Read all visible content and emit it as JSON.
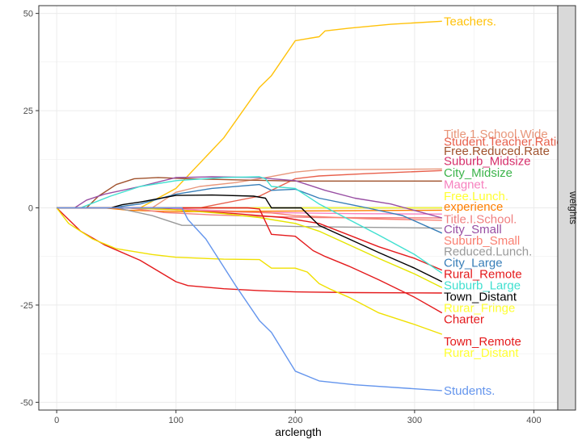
{
  "chart_data": {
    "type": "line",
    "xlabel": "arclength",
    "ylabel": "",
    "facet_label": "weights",
    "xlim": [
      -15,
      420
    ],
    "ylim": [
      -52,
      52
    ],
    "x_ticks": [
      0,
      100,
      200,
      300,
      400
    ],
    "y_ticks": [
      -50,
      -25,
      0,
      25,
      50
    ],
    "grid": true,
    "legend": "none",
    "series": [
      {
        "name": "Teachers.",
        "color": "#FFC20A",
        "points": [
          [
            0,
            0
          ],
          [
            70,
            0
          ],
          [
            100,
            5
          ],
          [
            140,
            18
          ],
          [
            170,
            31
          ],
          [
            180,
            34
          ],
          [
            200,
            43
          ],
          [
            210,
            43.5
          ],
          [
            220,
            44
          ],
          [
            225,
            45.5
          ],
          [
            245,
            46.2
          ],
          [
            280,
            47.2
          ],
          [
            323,
            48
          ]
        ]
      },
      {
        "name": "Title.1.School.Wide",
        "color": "#E8967A",
        "points": [
          [
            0,
            0
          ],
          [
            80,
            0
          ],
          [
            100,
            4
          ],
          [
            120,
            5.5
          ],
          [
            150,
            6.5
          ],
          [
            170,
            7.5
          ],
          [
            200,
            9.2
          ],
          [
            220,
            9.8
          ],
          [
            323,
            10
          ]
        ]
      },
      {
        "name": "Student.Teacher.Ratio",
        "color": "#E8604C",
        "points": [
          [
            0,
            0
          ],
          [
            120,
            0
          ],
          [
            170,
            3
          ],
          [
            200,
            7.5
          ],
          [
            220,
            8.2
          ],
          [
            260,
            8.8
          ],
          [
            323,
            9.6
          ]
        ]
      },
      {
        "name": "Free.Reduced.Rate",
        "color": "#A0522D",
        "points": [
          [
            0,
            0
          ],
          [
            25,
            0
          ],
          [
            35,
            3
          ],
          [
            50,
            6
          ],
          [
            65,
            7.5
          ],
          [
            85,
            7.8
          ],
          [
            110,
            7.5
          ],
          [
            150,
            7.2
          ],
          [
            200,
            6.9
          ],
          [
            323,
            6.9
          ]
        ]
      },
      {
        "name": "Suburb_Midsize",
        "color": "#D62E6A",
        "points": [
          [
            0,
            0
          ],
          [
            323,
            0
          ]
        ]
      },
      {
        "name": "City_Midsize",
        "color": "#3CB44B",
        "points": [
          [
            0,
            0
          ],
          [
            323,
            0
          ]
        ]
      },
      {
        "name": "Free.Lunch.",
        "color": "#FFFF33",
        "points": [
          [
            0,
            0
          ],
          [
            323,
            0
          ]
        ]
      },
      {
        "name": "Magnet.",
        "color": "#F781BF",
        "points": [
          [
            0,
            0
          ],
          [
            80,
            0
          ],
          [
            120,
            -0.5
          ],
          [
            180,
            -1.2
          ],
          [
            250,
            -1.5
          ],
          [
            323,
            -1.6
          ]
        ]
      },
      {
        "name": "experience",
        "color": "#FF7F00",
        "points": [
          [
            0,
            0
          ],
          [
            40,
            0
          ],
          [
            60,
            -0.6
          ],
          [
            100,
            -1
          ],
          [
            150,
            -0.9
          ],
          [
            200,
            -0.8
          ],
          [
            323,
            -0.6
          ]
        ]
      },
      {
        "name": "Title.I.School.",
        "color": "#F08080",
        "points": [
          [
            0,
            0
          ],
          [
            60,
            0
          ],
          [
            90,
            -1.2
          ],
          [
            130,
            -1.8
          ],
          [
            170,
            -2.2
          ],
          [
            220,
            -2.5
          ],
          [
            323,
            -2.6
          ]
        ]
      },
      {
        "name": "City_Small",
        "color": "#984EA3",
        "points": [
          [
            0,
            0
          ],
          [
            15,
            0
          ],
          [
            25,
            2
          ],
          [
            40,
            3.5
          ],
          [
            70,
            5.5
          ],
          [
            100,
            7.8
          ],
          [
            130,
            8
          ],
          [
            170,
            7.8
          ],
          [
            180,
            7.5
          ],
          [
            200,
            7
          ],
          [
            225,
            4.5
          ],
          [
            250,
            2.5
          ],
          [
            280,
            1
          ],
          [
            323,
            -2.6
          ]
        ]
      },
      {
        "name": "Suburb_Small",
        "color": "#FA8072",
        "points": [
          [
            0,
            0
          ],
          [
            60,
            0
          ],
          [
            120,
            -0.8
          ],
          [
            180,
            -1.3
          ],
          [
            200,
            -2
          ],
          [
            260,
            -2.8
          ],
          [
            323,
            -3.2
          ]
        ]
      },
      {
        "name": "Reduced.Lunch.",
        "color": "#999999",
        "points": [
          [
            0,
            0
          ],
          [
            50,
            0
          ],
          [
            80,
            -2
          ],
          [
            105,
            -4.5
          ],
          [
            170,
            -4.5
          ],
          [
            200,
            -4.8
          ],
          [
            323,
            -5.2
          ]
        ]
      },
      {
        "name": "City_Large",
        "color": "#377EB8",
        "points": [
          [
            0,
            0
          ],
          [
            45,
            0
          ],
          [
            70,
            1
          ],
          [
            100,
            3.5
          ],
          [
            130,
            5
          ],
          [
            170,
            6
          ],
          [
            180,
            4.5
          ],
          [
            200,
            4.8
          ],
          [
            220,
            2.5
          ],
          [
            260,
            0
          ],
          [
            290,
            -2
          ],
          [
            323,
            -6.5
          ]
        ]
      },
      {
        "name": "Rural_Remote",
        "color": "#E41A1C",
        "points": [
          [
            0,
            0
          ],
          [
            80,
            0
          ],
          [
            100,
            -0.5
          ],
          [
            150,
            -1.5
          ],
          [
            170,
            -2
          ],
          [
            190,
            -2.5
          ],
          [
            200,
            -3
          ],
          [
            220,
            -4
          ],
          [
            245,
            -7
          ],
          [
            270,
            -10
          ],
          [
            300,
            -13
          ],
          [
            323,
            -16
          ]
        ]
      },
      {
        "name": "Suburb_Large",
        "color": "#40E0D0",
        "points": [
          [
            0,
            0
          ],
          [
            20,
            0
          ],
          [
            45,
            3
          ],
          [
            70,
            5.5
          ],
          [
            100,
            7
          ],
          [
            140,
            7.8
          ],
          [
            170,
            8
          ],
          [
            175,
            7.5
          ],
          [
            180,
            5.5
          ],
          [
            200,
            5
          ],
          [
            220,
            1
          ],
          [
            245,
            -3
          ],
          [
            270,
            -7
          ],
          [
            300,
            -12
          ],
          [
            323,
            -16.8
          ]
        ]
      },
      {
        "name": "Town_Distant",
        "color": "#000000",
        "points": [
          [
            0,
            0
          ],
          [
            45,
            0
          ],
          [
            55,
            0.8
          ],
          [
            70,
            1.5
          ],
          [
            100,
            3.2
          ],
          [
            130,
            3.3
          ],
          [
            165,
            3
          ],
          [
            175,
            2.5
          ],
          [
            180,
            0
          ],
          [
            205,
            0
          ],
          [
            220,
            -4.5
          ],
          [
            245,
            -8
          ],
          [
            270,
            -11.5
          ],
          [
            300,
            -15.5
          ],
          [
            323,
            -19
          ]
        ]
      },
      {
        "name": "Rural_Fringe",
        "color": "#E5E500",
        "points": [
          [
            0,
            0
          ],
          [
            60,
            0
          ],
          [
            100,
            -0.5
          ],
          [
            140,
            -1.5
          ],
          [
            170,
            -2.5
          ],
          [
            180,
            -3
          ],
          [
            200,
            -4
          ],
          [
            220,
            -6
          ],
          [
            245,
            -9.5
          ],
          [
            270,
            -13
          ],
          [
            300,
            -17
          ],
          [
            323,
            -20.5
          ]
        ]
      },
      {
        "name": "Charter",
        "color": "#E41A1C",
        "points": [
          [
            0,
            0
          ],
          [
            160,
            0
          ],
          [
            170,
            -0.3
          ],
          [
            180,
            -6.8
          ],
          [
            200,
            -7.3
          ],
          [
            215,
            -11
          ],
          [
            225,
            -12.5
          ],
          [
            245,
            -15
          ],
          [
            270,
            -18.5
          ],
          [
            300,
            -23
          ],
          [
            323,
            -27
          ]
        ]
      },
      {
        "name": "Town_Remote",
        "color": "#E41A1C",
        "points": [
          [
            0,
            0
          ],
          [
            20,
            -6
          ],
          [
            40,
            -9.5
          ],
          [
            70,
            -13.5
          ],
          [
            100,
            -19
          ],
          [
            110,
            -20
          ],
          [
            140,
            -20.8
          ],
          [
            170,
            -21.3
          ],
          [
            200,
            -21.6
          ],
          [
            250,
            -21.8
          ],
          [
            323,
            -21.9
          ]
        ]
      },
      {
        "name": "Rurar_Distant",
        "color": "#F0E000",
        "points": [
          [
            0,
            0
          ],
          [
            10,
            -4
          ],
          [
            30,
            -8
          ],
          [
            50,
            -10.5
          ],
          [
            80,
            -12
          ],
          [
            100,
            -12.7
          ],
          [
            140,
            -13.2
          ],
          [
            170,
            -13.3
          ],
          [
            180,
            -15.5
          ],
          [
            200,
            -15.5
          ],
          [
            210,
            -16.5
          ],
          [
            220,
            -19.5
          ],
          [
            230,
            -21
          ],
          [
            245,
            -23
          ],
          [
            270,
            -27
          ],
          [
            300,
            -30
          ],
          [
            323,
            -32.5
          ]
        ]
      },
      {
        "name": "Students.",
        "color": "#6495ED",
        "points": [
          [
            0,
            0
          ],
          [
            105,
            0
          ],
          [
            110,
            -3
          ],
          [
            125,
            -8
          ],
          [
            150,
            -20
          ],
          [
            170,
            -29
          ],
          [
            180,
            -32
          ],
          [
            200,
            -42
          ],
          [
            220,
            -44.5
          ],
          [
            250,
            -45.5
          ],
          [
            323,
            -47
          ]
        ]
      }
    ],
    "end_labels": [
      {
        "text": "Teachers.",
        "y": 48,
        "color": "#FFC20A"
      },
      {
        "text": "Title.1.School.Wide",
        "y": 19,
        "color": "#E8967A"
      },
      {
        "text": "Student.Teacher.Ratio",
        "y": 17,
        "color": "#E8604C"
      },
      {
        "text": "Free.Reduced.Rate",
        "y": 14.6,
        "color": "#A0522D"
      },
      {
        "text": "Suburb_Midsize",
        "y": 12,
        "color": "#D62E6A"
      },
      {
        "text": "City_Midsize",
        "y": 9,
        "color": "#3CB44B"
      },
      {
        "text": "Free.Lunch.",
        "y": 3,
        "color": "#FFFF33"
      },
      {
        "text": "Magnet.",
        "y": 6,
        "color": "#F781BF"
      },
      {
        "text": "experience",
        "y": 0.3,
        "color": "#FF7F00"
      },
      {
        "text": "Title.I.School.",
        "y": -2.9,
        "color": "#F08080"
      },
      {
        "text": "City_Small",
        "y": -5.5,
        "color": "#984EA3"
      },
      {
        "text": "Suburb_Small",
        "y": -8.4,
        "color": "#FA8072"
      },
      {
        "text": "Reduced.Lunch.",
        "y": -11.2,
        "color": "#999999"
      },
      {
        "text": "City_Large",
        "y": -14.1,
        "color": "#377EB8"
      },
      {
        "text": "Rural_Remote",
        "y": -17,
        "color": "#E41A1C"
      },
      {
        "text": "Suburb_Large",
        "y": -19.9,
        "color": "#40E0D0"
      },
      {
        "text": "Town_Distant",
        "y": -22.8,
        "color": "#000000"
      },
      {
        "text": "Rurar_Fringe",
        "y": -25.7,
        "color": "#FFFF33"
      },
      {
        "text": "Charter",
        "y": -28.6,
        "color": "#E41A1C"
      },
      {
        "text": "Town_Remote",
        "y": -34.4,
        "color": "#E41A1C"
      },
      {
        "text": "Rurar_Distant",
        "y": -37.3,
        "color": "#FFFF33"
      },
      {
        "text": "Students.",
        "y": -47,
        "color": "#6495ED"
      }
    ]
  }
}
